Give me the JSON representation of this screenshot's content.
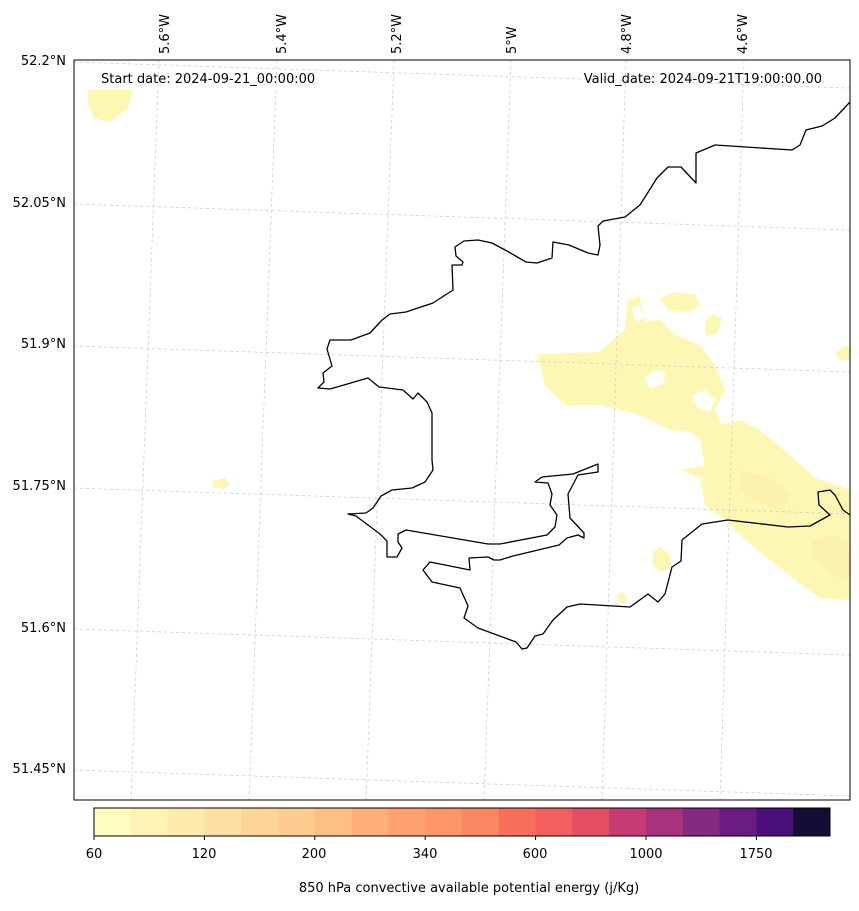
{
  "header": {
    "start_date": "Start date: 2024-09-21_00:00:00",
    "valid_date": "Valid_date: 2024-09-21T19:00:00.00"
  },
  "longitude_labels": [
    "5.6°W",
    "5.4°W",
    "5.2°W",
    "5°W",
    "4.8°W",
    "4.6°W"
  ],
  "latitude_labels": [
    "52.2°N",
    "52.05°N",
    "51.9°N",
    "51.75°N",
    "51.6°N",
    "51.45°N"
  ],
  "colorbar": {
    "label": "850 hPa convective available potential energy (j/Kg)",
    "tick_labels": [
      "60",
      "120",
      "200",
      "340",
      "600",
      "1000",
      "1750"
    ],
    "colors": [
      "#fcfdbf",
      "#fcf3b5",
      "#fde9ab",
      "#fedfa2",
      "#fed599",
      "#fecb91",
      "#febf84",
      "#feb078",
      "#fea16e",
      "#fd9668",
      "#fb8762",
      "#f7705c",
      "#f1605d",
      "#e34e65",
      "#c53c74",
      "#a8327d",
      "#852a81",
      "#6a1c81",
      "#4b1079",
      "#140e36"
    ]
  },
  "map": {
    "cape_fill_color": "#fcf8b3",
    "coastline_color": "#000000",
    "grid_color": "#cccccc"
  }
}
